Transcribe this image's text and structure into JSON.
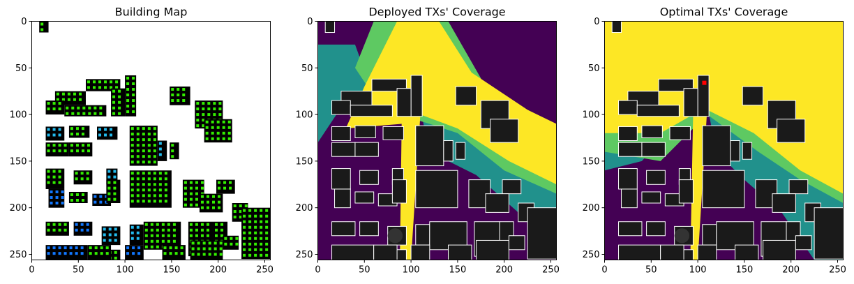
{
  "chart_data": [
    {
      "type": "heatmap",
      "title": "Building Map",
      "xlim": [
        0,
        256
      ],
      "ylim": [
        256,
        0
      ],
      "x_ticks": [
        "0",
        "50",
        "100",
        "150",
        "200",
        "250"
      ],
      "y_ticks": [
        "0",
        "50",
        "100",
        "150",
        "200",
        "250"
      ],
      "background": "#ffffff",
      "colors": {
        "building": "#000000",
        "rx_green": "#33ee00",
        "rx_blue": "#1177ff",
        "rx_cyan": "#22bbee"
      }
    },
    {
      "type": "heatmap",
      "title": "Deployed TXs' Coverage",
      "xlim": [
        0,
        256
      ],
      "ylim": [
        256,
        0
      ],
      "x_ticks": [
        "0",
        "50",
        "100",
        "150",
        "200",
        "250"
      ],
      "y_ticks": [
        "0",
        "50",
        "100",
        "150",
        "200",
        "250"
      ],
      "colors": {
        "level_0": "#440154",
        "level_1": "#21918c",
        "level_2": "#5ec962",
        "level_3": "#fde725",
        "building": "#1a1a1a",
        "outline": "#ffffff"
      }
    },
    {
      "type": "heatmap",
      "title": "Optimal TXs' Coverage",
      "xlim": [
        0,
        256
      ],
      "ylim": [
        256,
        0
      ],
      "x_ticks": [
        "0",
        "50",
        "100",
        "150",
        "200",
        "250"
      ],
      "y_ticks": [
        "0",
        "50",
        "100",
        "150",
        "200",
        "250"
      ],
      "tx_marker": {
        "x": 107,
        "y": 66,
        "color": "#ff0000"
      },
      "colors": {
        "level_0": "#440154",
        "level_1": "#21918c",
        "level_2": "#5ec962",
        "level_3": "#fde725",
        "building": "#1a1a1a",
        "outline": "#ffffff"
      }
    }
  ]
}
